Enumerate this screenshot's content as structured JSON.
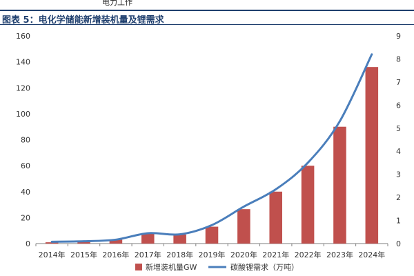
{
  "header_fragment": "电力工作",
  "title": "图表 5：电化学储能新增装机量及锂需求",
  "chart_data": {
    "type": "bar+line",
    "categories": [
      "2014年",
      "2015年",
      "2016年",
      "2017年",
      "2018年",
      "2019年",
      "2020年",
      "2021年",
      "2022年",
      "2023年",
      "2024年"
    ],
    "series": [
      {
        "name": "新增装机量GW",
        "kind": "bar",
        "axis": "left",
        "color": "#c0504d",
        "values": [
          1,
          1.5,
          3,
          8,
          7,
          13,
          26.5,
          40,
          60,
          90,
          136
        ]
      },
      {
        "name": "碳酸锂需求（万吨）",
        "kind": "line",
        "axis": "right",
        "color": "#4a7ebb",
        "values": [
          0.08,
          0.1,
          0.17,
          0.45,
          0.4,
          0.8,
          1.6,
          2.35,
          3.5,
          5.3,
          8.2
        ]
      }
    ],
    "y_left": {
      "min": 0,
      "max": 160,
      "step": 20,
      "ticks": [
        "0",
        "20",
        "40",
        "60",
        "80",
        "100",
        "120",
        "140",
        "160"
      ]
    },
    "y_right": {
      "min": 0,
      "max": 9,
      "step": 1,
      "ticks": [
        "0",
        "1",
        "2",
        "3",
        "4",
        "5",
        "6",
        "7",
        "8",
        "9"
      ]
    },
    "legend_position": "bottom",
    "grid": false
  }
}
